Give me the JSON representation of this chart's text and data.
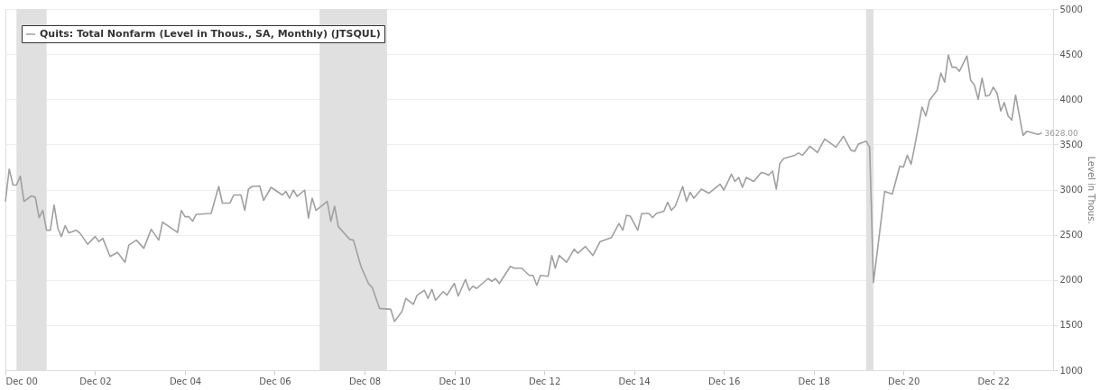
{
  "chart_data": {
    "type": "line",
    "y2label": "Level in Thous.",
    "x": [
      "2000-12",
      "2001-01",
      "2001-02",
      "2001-03",
      "2001-04",
      "2001-05",
      "2001-07",
      "2001-08",
      "2001-09",
      "2001-10",
      "2001-11",
      "2001-12",
      "2002-01",
      "2002-02",
      "2002-03",
      "2002-04",
      "2002-05",
      "2002-07",
      "2002-08",
      "2002-10",
      "2002-12",
      "2003-01",
      "2003-02",
      "2003-04",
      "2003-06",
      "2003-08",
      "2003-09",
      "2003-11",
      "2004-01",
      "2004-03",
      "2004-05",
      "2004-06",
      "2004-10",
      "2004-11",
      "2004-12",
      "2005-01",
      "2005-02",
      "2005-03",
      "2005-07",
      "2005-09",
      "2005-10",
      "2005-12",
      "2006-01",
      "2006-03",
      "2006-04",
      "2006-05",
      "2006-06",
      "2006-08",
      "2006-09",
      "2006-11",
      "2007-02",
      "2007-03",
      "2007-04",
      "2007-05",
      "2007-06",
      "2007-08",
      "2007-09",
      "2007-10",
      "2007-11",
      "2008-02",
      "2008-03",
      "2008-04",
      "2008-05",
      "2008-08",
      "2008-09",
      "2008-11",
      "2009-01",
      "2009-02",
      "2009-04",
      "2009-07",
      "2009-08",
      "2009-10",
      "2009-11",
      "2010-01",
      "2010-02",
      "2010-04",
      "2010-05",
      "2010-06",
      "2010-07",
      "2010-09",
      "2010-10",
      "2010-12",
      "2011-01",
      "2011-03",
      "2011-04",
      "2011-05",
      "2011-06",
      "2011-09",
      "2011-10",
      "2011-11",
      "2011-12",
      "2012-03",
      "2012-04",
      "2012-06",
      "2012-08",
      "2012-09",
      "2012-10",
      "2012-11",
      "2013-01",
      "2013-02",
      "2013-03",
      "2013-04",
      "2013-06",
      "2013-08",
      "2013-09",
      "2013-11",
      "2014-01",
      "2014-03",
      "2014-06",
      "2014-08",
      "2014-09",
      "2014-10",
      "2014-11",
      "2015-01",
      "2015-02",
      "2015-04",
      "2015-05",
      "2015-06",
      "2015-08",
      "2015-09",
      "2015-10",
      "2015-11",
      "2016-01",
      "2016-02",
      "2016-03",
      "2016-04",
      "2016-06",
      "2016-08",
      "2016-11",
      "2016-12",
      "2017-02",
      "2017-03",
      "2017-04",
      "2017-05",
      "2017-06",
      "2017-08",
      "2017-10",
      "2017-11",
      "2017-12",
      "2018-01",
      "2018-02",
      "2018-03",
      "2018-04",
      "2018-07",
      "2018-08",
      "2018-09",
      "2018-11",
      "2019-01",
      "2019-03",
      "2019-06",
      "2019-08",
      "2019-10",
      "2019-11",
      "2019-12",
      "2020-02",
      "2020-03",
      "2020-04",
      "2020-07",
      "2020-09",
      "2020-11",
      "2020-12",
      "2021-01",
      "2021-02",
      "2021-03",
      "2021-05",
      "2021-06",
      "2021-07",
      "2021-09",
      "2021-10",
      "2021-11",
      "2021-12",
      "2022-01",
      "2022-02",
      "2022-03",
      "2022-05",
      "2022-06",
      "2022-07",
      "2022-08",
      "2022-09",
      "2022-10",
      "2022-11",
      "2022-12",
      "2023-01",
      "2023-02",
      "2023-03",
      "2023-04",
      "2023-05",
      "2023-06",
      "2023-08",
      "2023-09",
      "2023-12",
      "2024-01"
    ],
    "series": [
      {
        "name": "Quits: Total Nonfarm (Level in Thous., SA, Monthly) (JTSQUL)",
        "color": "#a0a0a0",
        "axis": "y2",
        "values": [
          2870,
          3226,
          3050,
          3050,
          3150,
          2870,
          2930,
          2915,
          2690,
          2770,
          2550,
          2550,
          2830,
          2570,
          2480,
          2600,
          2520,
          2550,
          2515,
          2395,
          2480,
          2425,
          2460,
          2260,
          2305,
          2195,
          2385,
          2440,
          2350,
          2560,
          2440,
          2640,
          2525,
          2770,
          2700,
          2700,
          2650,
          2725,
          2735,
          3035,
          2850,
          2850,
          2940,
          2940,
          2770,
          3005,
          3035,
          3040,
          2880,
          3025,
          2940,
          2980,
          2905,
          2995,
          2925,
          2995,
          2685,
          2905,
          2770,
          2870,
          2650,
          2815,
          2590,
          2450,
          2440,
          2150,
          1960,
          1915,
          1685,
          1675,
          1540,
          1650,
          1795,
          1730,
          1830,
          1885,
          1795,
          1895,
          1775,
          1870,
          1830,
          1960,
          1820,
          2005,
          1885,
          1930,
          1905,
          2015,
          1985,
          2015,
          1960,
          2150,
          2130,
          2130,
          2050,
          2050,
          1940,
          2050,
          2040,
          2270,
          2130,
          2270,
          2195,
          2340,
          2295,
          2370,
          2270,
          2425,
          2470,
          2625,
          2550,
          2715,
          2705,
          2550,
          2735,
          2735,
          2690,
          2735,
          2760,
          2860,
          2770,
          2815,
          3035,
          2870,
          2970,
          2905,
          3005,
          2960,
          3060,
          2995,
          3170,
          3090,
          3135,
          3025,
          3135,
          3090,
          3190,
          3180,
          3160,
          3205,
          3005,
          3290,
          3345,
          3380,
          3405,
          3380,
          3480,
          3410,
          3560,
          3470,
          3590,
          3435,
          3425,
          3505,
          3535,
          3470,
          1970,
          2980,
          2950,
          3260,
          3250,
          3380,
          3280,
          3470,
          3915,
          3815,
          3990,
          4100,
          4290,
          4190,
          4490,
          4355,
          4355,
          4310,
          4480,
          4210,
          4160,
          4000,
          4235,
          4035,
          4045,
          4135,
          4070,
          3870,
          3965,
          3815,
          3770,
          4045,
          3600,
          3645,
          3610,
          3628
        ],
        "value_labels": [
          null,
          null,
          null,
          null,
          null,
          null,
          null,
          null,
          null,
          null,
          null,
          null,
          null,
          null,
          null,
          null,
          null,
          null,
          null,
          null,
          null,
          null,
          null,
          null,
          null,
          null,
          null,
          null,
          null,
          null,
          null,
          null,
          null,
          null,
          null,
          null,
          null,
          null,
          null,
          null,
          null,
          null,
          null,
          null,
          null,
          null,
          null,
          null,
          null,
          null,
          null,
          null,
          null,
          null,
          null,
          null,
          null,
          null,
          null,
          null,
          null,
          null,
          null,
          null,
          null,
          null,
          null,
          null,
          null,
          null,
          null,
          null,
          null,
          null,
          null,
          null,
          null,
          null,
          null,
          null,
          null,
          null,
          null,
          null,
          null,
          null,
          null,
          null,
          null,
          null,
          null,
          null,
          null,
          null,
          null,
          null,
          null,
          null,
          null,
          null,
          null,
          null,
          null,
          null,
          null,
          null,
          null,
          null,
          null,
          null,
          null,
          null,
          null,
          null,
          null,
          null,
          null,
          null,
          null,
          null,
          null,
          null,
          null,
          null,
          null,
          null,
          null,
          null,
          null,
          null,
          null,
          null,
          null,
          null,
          null,
          null,
          null,
          null,
          null,
          null,
          null,
          null,
          null,
          null,
          null,
          null,
          null,
          null,
          null,
          null,
          null,
          null,
          null,
          null,
          null,
          null,
          null,
          null,
          null,
          null,
          null,
          null,
          null,
          null,
          null,
          null,
          null,
          null,
          null,
          null,
          null,
          null,
          null,
          null,
          null,
          null,
          null,
          null,
          null,
          null,
          null,
          null,
          null,
          null,
          null,
          null,
          null,
          null,
          null,
          null,
          null,
          "3628.00"
        ]
      }
    ],
    "xlim": [
      "2000-12",
      "2024-04"
    ],
    "xticks": [
      {
        "value": "2000-12",
        "label": "Dec 00"
      },
      {
        "value": "2002-12",
        "label": "Dec 02"
      },
      {
        "value": "2004-12",
        "label": "Dec 04"
      },
      {
        "value": "2006-12",
        "label": "Dec 06"
      },
      {
        "value": "2008-12",
        "label": "Dec 08"
      },
      {
        "value": "2010-12",
        "label": "Dec 10"
      },
      {
        "value": "2012-12",
        "label": "Dec 12"
      },
      {
        "value": "2014-12",
        "label": "Dec 14"
      },
      {
        "value": "2016-12",
        "label": "Dec 16"
      },
      {
        "value": "2018-12",
        "label": "Dec 18"
      },
      {
        "value": "2020-12",
        "label": "Dec 20"
      },
      {
        "value": "2022-12",
        "label": "Dec 22"
      }
    ],
    "y2lim": [
      1000,
      5000
    ],
    "y2ticks": [
      1000,
      1500,
      2000,
      2500,
      3000,
      3500,
      4000,
      4500,
      5000
    ],
    "bands": [
      {
        "axis": "x",
        "from": "2001-03",
        "to": "2001-11",
        "color": "#e0e0e0"
      },
      {
        "axis": "x",
        "from": "2007-12",
        "to": "2009-06",
        "color": "#e0e0e0"
      },
      {
        "axis": "x",
        "from": "2020-02",
        "to": "2020-04",
        "color": "#e0e0e0"
      }
    ],
    "grid": "y2",
    "legend": "top left",
    "marker": "none",
    "line_style": "solid"
  }
}
